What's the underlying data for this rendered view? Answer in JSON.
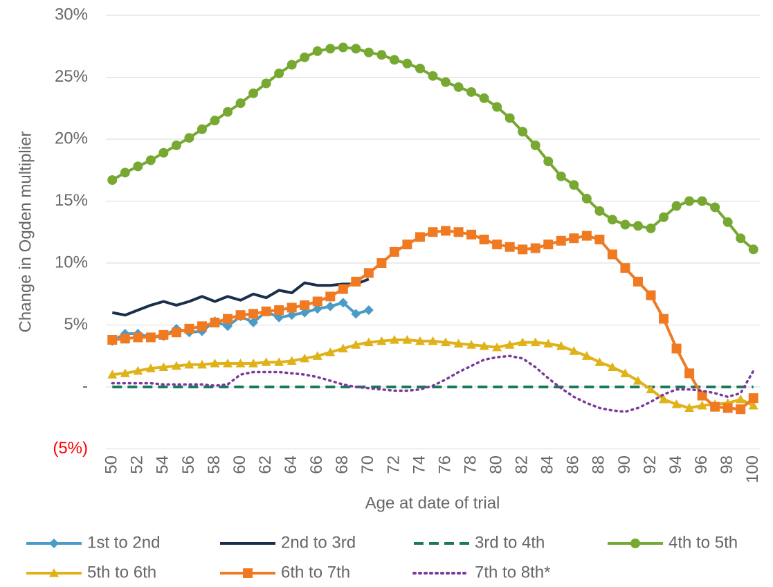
{
  "chart_data": {
    "type": "line",
    "y_label": "Change in Ogden multiplier",
    "x_label": "Age at date of trial",
    "categories": [
      "50",
      null,
      "52",
      null,
      "54",
      null,
      "56",
      null,
      "58",
      null,
      "60",
      null,
      "62",
      null,
      "64",
      null,
      "66",
      null,
      "68",
      null,
      "70",
      null,
      "72",
      null,
      "74",
      null,
      "76",
      null,
      "78",
      null,
      "80",
      null,
      "82",
      null,
      "84",
      null,
      "86",
      null,
      "88",
      null,
      "90",
      null,
      "92",
      null,
      "94",
      null,
      "96",
      null,
      "98",
      null,
      "100"
    ],
    "ylim": [
      -5,
      30
    ],
    "yticks": [
      {
        "value": -5,
        "label": "(5%)",
        "color": "#ff0000"
      },
      {
        "value": 0,
        "label": "-"
      },
      {
        "value": 5,
        "label": "5%"
      },
      {
        "value": 10,
        "label": "10%"
      },
      {
        "value": 15,
        "label": "15%"
      },
      {
        "value": 20,
        "label": "20%"
      },
      {
        "value": 25,
        "label": "25%"
      },
      {
        "value": 30,
        "label": "30%"
      }
    ],
    "grid": true,
    "legend": "bottom",
    "series": [
      {
        "name": "1st to 2nd",
        "color": "#4a9cc7",
        "marker": "diamond",
        "dash": "solid",
        "values": [
          3.7,
          4.3,
          4.3,
          4.0,
          4.1,
          4.7,
          4.4,
          4.5,
          5.3,
          4.9,
          5.7,
          5.2,
          6.1,
          5.6,
          5.8,
          6.0,
          6.3,
          6.5,
          6.8,
          5.9,
          6.2,
          null,
          null,
          null,
          null,
          null,
          null,
          null,
          null,
          null,
          null,
          null,
          null,
          null,
          null,
          null,
          null,
          null,
          null,
          null,
          null,
          null,
          null,
          null,
          null,
          null,
          null,
          null,
          null,
          null,
          null
        ]
      },
      {
        "name": "2nd to 3rd",
        "color": "#1b2f4b",
        "marker": "none",
        "dash": "solid",
        "values": [
          6.0,
          5.8,
          6.2,
          6.6,
          6.9,
          6.6,
          6.9,
          7.3,
          6.9,
          7.3,
          7.0,
          7.5,
          7.2,
          7.8,
          7.6,
          8.4,
          8.2,
          8.2,
          8.3,
          8.3,
          8.7,
          null,
          null,
          null,
          null,
          null,
          null,
          null,
          null,
          null,
          null,
          null,
          null,
          null,
          null,
          null,
          null,
          null,
          null,
          null,
          null,
          null,
          null,
          null,
          null,
          null,
          null,
          null,
          null,
          null,
          null
        ]
      },
      {
        "name": "3rd to 4th",
        "color": "#1a7a5a",
        "marker": "none",
        "dash": "dashed",
        "values": [
          0,
          0,
          0,
          0,
          0,
          0,
          0,
          0,
          0,
          0,
          0,
          0,
          0,
          0,
          0,
          0,
          0,
          0,
          0,
          0,
          0,
          0,
          0,
          0,
          0,
          0,
          0,
          0,
          0,
          0,
          0,
          0,
          0,
          0,
          0,
          0,
          0,
          0,
          0,
          0,
          0,
          0,
          0,
          0,
          0,
          0,
          0,
          0,
          0,
          0,
          0
        ]
      },
      {
        "name": "4th to 5th",
        "color": "#77a832",
        "marker": "circle",
        "dash": "solid",
        "values": [
          16.7,
          17.3,
          17.8,
          18.3,
          18.9,
          19.5,
          20.1,
          20.8,
          21.5,
          22.2,
          22.9,
          23.7,
          24.5,
          25.3,
          26.0,
          26.6,
          27.1,
          27.3,
          27.4,
          27.3,
          27.0,
          26.8,
          26.4,
          26.1,
          25.7,
          25.1,
          24.6,
          24.2,
          23.8,
          23.3,
          22.6,
          21.7,
          20.6,
          19.5,
          18.2,
          17.0,
          16.3,
          15.2,
          14.2,
          13.5,
          13.1,
          13.0,
          12.8,
          13.7,
          14.6,
          15.0,
          15.0,
          14.5,
          13.3,
          12.0,
          11.1
        ]
      },
      {
        "name": "5th to 6th",
        "color": "#e0b21a",
        "marker": "triangle",
        "dash": "solid",
        "values": [
          1.0,
          1.1,
          1.3,
          1.5,
          1.6,
          1.7,
          1.8,
          1.8,
          1.9,
          1.9,
          1.9,
          1.9,
          2.0,
          2.0,
          2.1,
          2.3,
          2.5,
          2.8,
          3.1,
          3.4,
          3.6,
          3.7,
          3.8,
          3.8,
          3.7,
          3.7,
          3.6,
          3.5,
          3.4,
          3.3,
          3.2,
          3.4,
          3.6,
          3.6,
          3.5,
          3.3,
          2.9,
          2.5,
          2.0,
          1.6,
          1.1,
          0.5,
          -0.2,
          -1.0,
          -1.4,
          -1.7,
          -1.5,
          -1.4,
          -1.3,
          -1.0,
          -1.5
        ]
      },
      {
        "name": "6th to 7th",
        "color": "#f07a22",
        "marker": "square",
        "dash": "solid",
        "values": [
          3.8,
          3.9,
          4.0,
          4.0,
          4.2,
          4.4,
          4.7,
          4.9,
          5.2,
          5.5,
          5.8,
          5.9,
          6.1,
          6.2,
          6.4,
          6.6,
          6.9,
          7.3,
          7.9,
          8.5,
          9.2,
          10.0,
          10.9,
          11.5,
          12.1,
          12.5,
          12.6,
          12.5,
          12.3,
          11.9,
          11.5,
          11.3,
          11.1,
          11.2,
          11.5,
          11.8,
          12.0,
          12.2,
          11.9,
          10.7,
          9.6,
          8.5,
          7.4,
          5.5,
          3.1,
          1.1,
          -0.7,
          -1.6,
          -1.7,
          -1.8,
          -0.9
        ]
      },
      {
        "name": "7th to 8th*",
        "color": "#7a3a9a",
        "marker": "none",
        "dash": "dotted",
        "values": [
          0.3,
          0.3,
          0.3,
          0.3,
          0.2,
          0.2,
          0.2,
          0.2,
          0.1,
          0.2,
          1.0,
          1.2,
          1.2,
          1.2,
          1.1,
          1.0,
          0.8,
          0.5,
          0.2,
          0.0,
          -0.1,
          -0.2,
          -0.3,
          -0.3,
          -0.2,
          0.1,
          0.6,
          1.2,
          1.7,
          2.2,
          2.4,
          2.5,
          2.3,
          1.6,
          0.7,
          -0.1,
          -0.8,
          -1.3,
          -1.7,
          -1.9,
          -2.0,
          -1.7,
          -1.2,
          -0.6,
          -0.2,
          -0.2,
          -0.3,
          -0.5,
          -0.8,
          -0.5,
          1.3
        ]
      }
    ]
  }
}
